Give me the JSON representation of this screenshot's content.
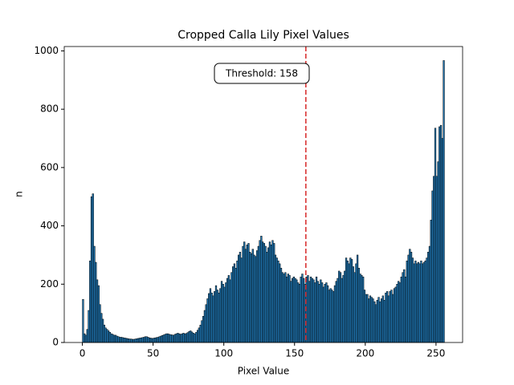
{
  "chart_data": {
    "type": "histogram",
    "title": "Cropped Calla Lily Pixel Values",
    "x_label": "Pixel Value",
    "y_label": "n",
    "annotation": "Threshold: 158",
    "threshold": 158,
    "threshold_color": "#d62728",
    "color": "#1f77b4",
    "edge_color": "#000000",
    "xlim": [
      -12.8,
      268.8
    ],
    "ylim": [
      0,
      1015
    ],
    "xticks": [
      0,
      50,
      100,
      150,
      200,
      250
    ],
    "yticks": [
      0,
      200,
      400,
      600,
      800,
      1000
    ],
    "bins": [
      0,
      1,
      2,
      3,
      4,
      5,
      6,
      7,
      8,
      9,
      10,
      11,
      12,
      13,
      14,
      15,
      16,
      17,
      18,
      19,
      20,
      21,
      22,
      23,
      24,
      25,
      26,
      27,
      28,
      29,
      30,
      31,
      32,
      33,
      34,
      35,
      36,
      37,
      38,
      39,
      40,
      41,
      42,
      43,
      44,
      45,
      46,
      47,
      48,
      49,
      50,
      51,
      52,
      53,
      54,
      55,
      56,
      57,
      58,
      59,
      60,
      61,
      62,
      63,
      64,
      65,
      66,
      67,
      68,
      69,
      70,
      71,
      72,
      73,
      74,
      75,
      76,
      77,
      78,
      79,
      80,
      81,
      82,
      83,
      84,
      85,
      86,
      87,
      88,
      89,
      90,
      91,
      92,
      93,
      94,
      95,
      96,
      97,
      98,
      99,
      100,
      101,
      102,
      103,
      104,
      105,
      106,
      107,
      108,
      109,
      110,
      111,
      112,
      113,
      114,
      115,
      116,
      117,
      118,
      119,
      120,
      121,
      122,
      123,
      124,
      125,
      126,
      127,
      128,
      129,
      130,
      131,
      132,
      133,
      134,
      135,
      136,
      137,
      138,
      139,
      140,
      141,
      142,
      143,
      144,
      145,
      146,
      147,
      148,
      149,
      150,
      151,
      152,
      153,
      154,
      155,
      156,
      157,
      158,
      159,
      160,
      161,
      162,
      163,
      164,
      165,
      166,
      167,
      168,
      169,
      170,
      171,
      172,
      173,
      174,
      175,
      176,
      177,
      178,
      179,
      180,
      181,
      182,
      183,
      184,
      185,
      186,
      187,
      188,
      189,
      190,
      191,
      192,
      193,
      194,
      195,
      196,
      197,
      198,
      199,
      200,
      201,
      202,
      203,
      204,
      205,
      206,
      207,
      208,
      209,
      210,
      211,
      212,
      213,
      214,
      215,
      216,
      217,
      218,
      219,
      220,
      221,
      222,
      223,
      224,
      225,
      226,
      227,
      228,
      229,
      230,
      231,
      232,
      233,
      234,
      235,
      236,
      237,
      238,
      239,
      240,
      241,
      242,
      243,
      244,
      245,
      246,
      247,
      248,
      249,
      250,
      251,
      252,
      253,
      254,
      255,
      256
    ],
    "counts": [
      148,
      30,
      25,
      45,
      110,
      280,
      500,
      510,
      330,
      275,
      215,
      195,
      130,
      100,
      80,
      60,
      50,
      45,
      40,
      35,
      30,
      28,
      25,
      25,
      22,
      20,
      18,
      18,
      17,
      16,
      15,
      14,
      13,
      12,
      12,
      11,
      11,
      12,
      13,
      14,
      15,
      16,
      17,
      18,
      20,
      20,
      18,
      16,
      15,
      14,
      15,
      16,
      17,
      18,
      20,
      22,
      24,
      26,
      28,
      30,
      30,
      28,
      27,
      26,
      25,
      28,
      30,
      32,
      30,
      28,
      30,
      32,
      30,
      31,
      34,
      38,
      40,
      36,
      32,
      30,
      35,
      42,
      50,
      60,
      75,
      90,
      110,
      130,
      150,
      168,
      185,
      170,
      160,
      175,
      195,
      180,
      170,
      185,
      210,
      200,
      190,
      205,
      220,
      230,
      215,
      240,
      260,
      270,
      255,
      280,
      300,
      310,
      290,
      330,
      345,
      320,
      335,
      340,
      310,
      305,
      320,
      300,
      295,
      315,
      330,
      350,
      365,
      345,
      340,
      330,
      310,
      325,
      345,
      335,
      350,
      340,
      300,
      290,
      280,
      270,
      255,
      240,
      235,
      240,
      225,
      235,
      230,
      210,
      220,
      225,
      220,
      215,
      205,
      200,
      225,
      235,
      220,
      200,
      225,
      230,
      210,
      225,
      220,
      215,
      205,
      225,
      210,
      200,
      215,
      205,
      190,
      200,
      205,
      195,
      180,
      185,
      180,
      175,
      195,
      210,
      220,
      245,
      240,
      220,
      230,
      245,
      290,
      280,
      270,
      290,
      285,
      260,
      240,
      270,
      300,
      255,
      235,
      230,
      225,
      180,
      165,
      165,
      150,
      160,
      155,
      150,
      140,
      130,
      145,
      155,
      140,
      150,
      160,
      145,
      170,
      175,
      160,
      175,
      180,
      165,
      185,
      190,
      200,
      210,
      205,
      225,
      240,
      250,
      225,
      280,
      300,
      320,
      310,
      290,
      270,
      280,
      270,
      275,
      270,
      280,
      270,
      275,
      280,
      290,
      310,
      330,
      420,
      520,
      570,
      735,
      570,
      620,
      740,
      745,
      700,
      967
    ]
  }
}
